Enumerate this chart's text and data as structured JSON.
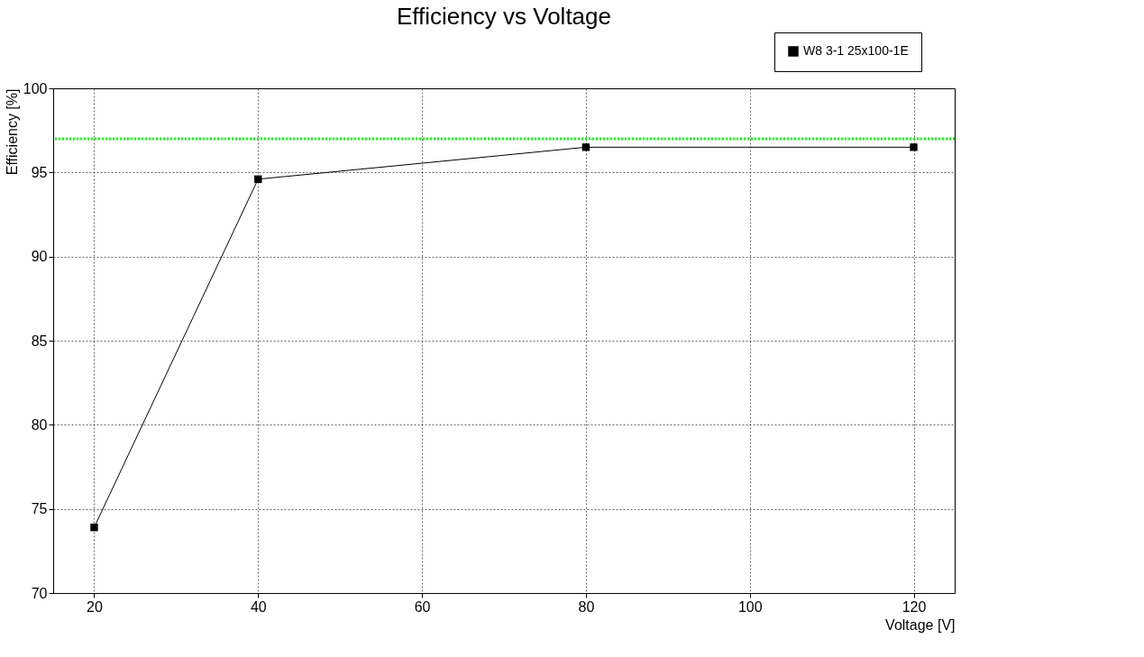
{
  "chart_data": {
    "type": "line",
    "title": "Efficiency vs Voltage",
    "xlabel": "Voltage [V]",
    "ylabel": "Efficiency [%]",
    "x": [
      20,
      40,
      80,
      120
    ],
    "series": [
      {
        "name": "W8 3-1 25x100-1E",
        "color": "#000000",
        "values": [
          73.9,
          94.6,
          96.5,
          96.5
        ]
      }
    ],
    "xlim": [
      15,
      125
    ],
    "xticks": [
      20,
      40,
      60,
      80,
      100,
      120
    ],
    "ylim": [
      70,
      100
    ],
    "yticks": [
      70,
      75,
      80,
      85,
      90,
      95,
      100
    ],
    "ref_lines": [
      {
        "axis": "y",
        "value": 97,
        "color": "#00ff00",
        "line_style": "dotted"
      }
    ],
    "grid": true,
    "legend": "top right",
    "marker": "square",
    "line_style": "solid"
  }
}
